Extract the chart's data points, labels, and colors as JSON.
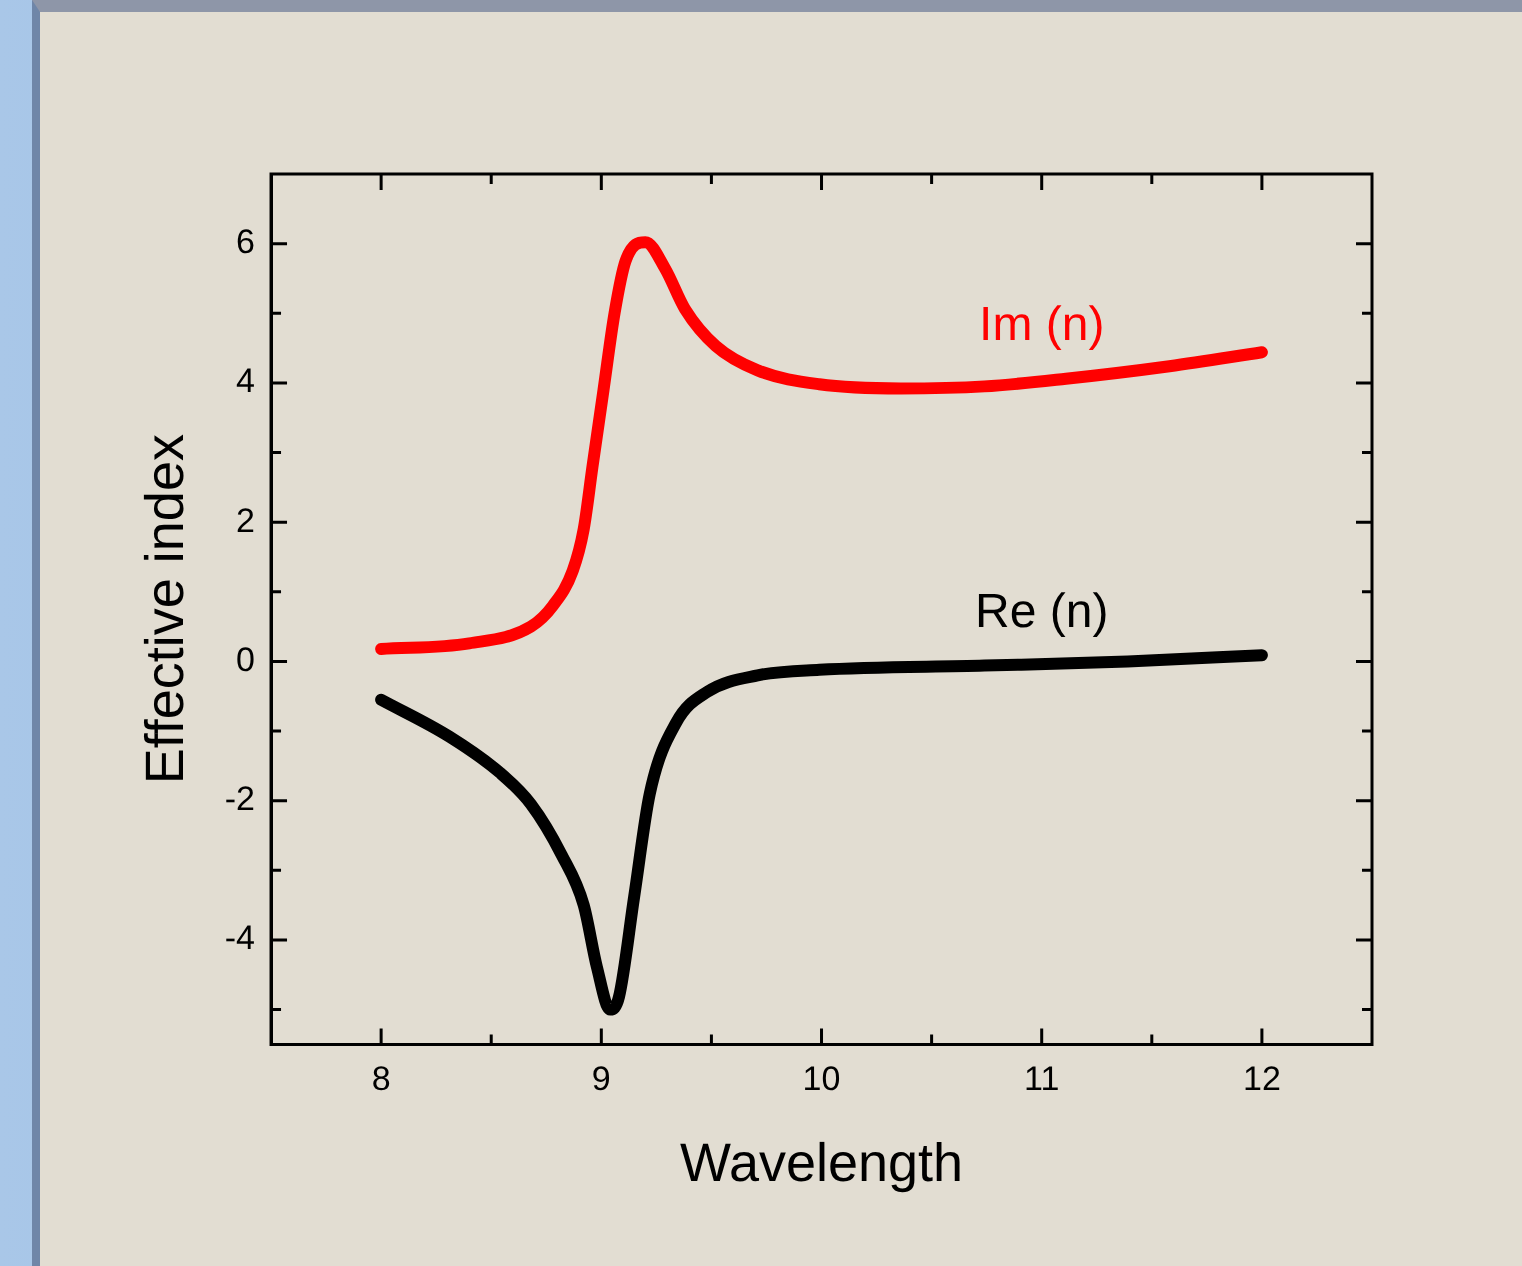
{
  "chart_data": {
    "type": "line",
    "xlabel": "Wavelength",
    "ylabel": "Effective index",
    "xlim": [
      7.5,
      12.5
    ],
    "xticks": [
      8,
      {
        "value": 8.5,
        "label": null
      },
      9,
      {
        "value": 9.5,
        "label": null
      },
      10,
      {
        "value": 10.5,
        "label": null
      },
      11,
      {
        "value": 11.5,
        "label": null
      },
      12
    ],
    "ylim": [
      -5.5,
      7
    ],
    "yticks": [
      {
        "value": -5,
        "label": null
      },
      -4,
      {
        "value": -3,
        "label": null
      },
      -2,
      {
        "value": -1,
        "label": null
      },
      0,
      {
        "value": 1,
        "label": null
      },
      2,
      {
        "value": 3,
        "label": null
      },
      4,
      {
        "value": 5,
        "label": null
      },
      6
    ],
    "grid": false,
    "legend": false,
    "marker": "none",
    "line_style": "solid",
    "series": [
      {
        "name": "Im (n)",
        "color": "#ff0000",
        "x": [
          8,
          8.4,
          8.68,
          8.78,
          8.87,
          8.92,
          8.96,
          9.01,
          9.06,
          9.11,
          9.2,
          9.29,
          9.38,
          9.52,
          9.71,
          9.99,
          10.36,
          10.74,
          11.11,
          11.58,
          12
        ],
        "values": [
          0.18,
          0.26,
          0.5,
          0.8,
          1.3,
          1.9,
          2.8,
          3.9,
          5.0,
          5.75,
          6.02,
          5.64,
          5.06,
          4.53,
          4.18,
          3.98,
          3.92,
          3.95,
          4.06,
          4.24,
          4.44
        ]
      },
      {
        "name": "Re (n)",
        "color": "#000000",
        "x": [
          8,
          8.31,
          8.54,
          8.68,
          8.82,
          8.92,
          8.98,
          9.04,
          9.08,
          9.15,
          9.22,
          9.34,
          9.48,
          9.71,
          9.99,
          10.74,
          11.39,
          12
        ],
        "values": [
          -0.55,
          -1.08,
          -1.6,
          -2.05,
          -2.78,
          -3.5,
          -4.39,
          -5.0,
          -4.82,
          -3.36,
          -1.9,
          -0.88,
          -0.44,
          -0.2,
          -0.12,
          -0.06,
          0,
          0.09
        ]
      }
    ]
  }
}
